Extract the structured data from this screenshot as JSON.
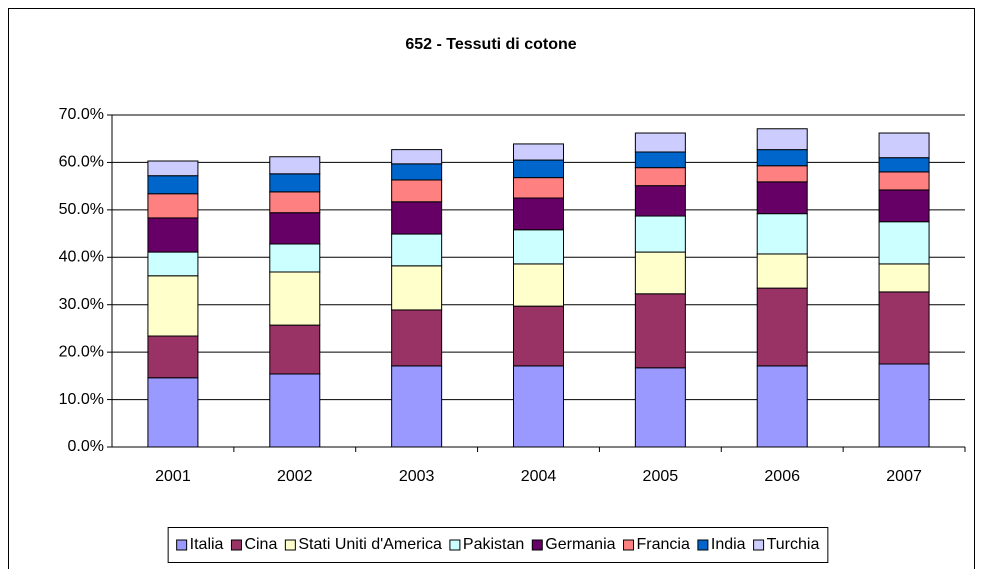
{
  "chart_data": {
    "type": "stacked-bar",
    "title": "652 - Tessuti di cotone",
    "categories": [
      "2001",
      "2002",
      "2003",
      "2004",
      "2005",
      "2006",
      "2007"
    ],
    "series": [
      {
        "name": "Italia",
        "color": "#9999ff",
        "values": [
          14.6,
          15.4,
          17.1,
          17.1,
          16.7,
          17.1,
          17.5
        ]
      },
      {
        "name": "Cina",
        "color": "#993366",
        "values": [
          8.8,
          10.3,
          11.8,
          12.6,
          15.6,
          16.4,
          15.2
        ]
      },
      {
        "name": "Stati Uniti d'America",
        "color": "#ffffcc",
        "values": [
          12.7,
          11.2,
          9.3,
          8.9,
          8.8,
          7.2,
          5.9
        ]
      },
      {
        "name": "Pakistan",
        "color": "#ccffff",
        "values": [
          5.0,
          5.9,
          6.7,
          7.2,
          7.6,
          8.5,
          8.9
        ]
      },
      {
        "name": "Germania",
        "color": "#660066",
        "values": [
          7.2,
          6.6,
          6.8,
          6.7,
          6.4,
          6.7,
          6.7
        ]
      },
      {
        "name": "Francia",
        "color": "#ff8080",
        "values": [
          5.1,
          4.4,
          4.6,
          4.3,
          3.8,
          3.4,
          3.8
        ]
      },
      {
        "name": "India",
        "color": "#0066cc",
        "values": [
          3.8,
          3.8,
          3.4,
          3.7,
          3.3,
          3.4,
          3.0
        ]
      },
      {
        "name": "Turchia",
        "color": "#ccccff",
        "values": [
          3.1,
          3.6,
          3.0,
          3.4,
          4.0,
          4.4,
          5.2
        ]
      }
    ],
    "ylim": [
      0,
      70
    ],
    "yticks": [
      {
        "value": 0,
        "label": "0.0%"
      },
      {
        "value": 10,
        "label": "10.0%"
      },
      {
        "value": 20,
        "label": "20.0%"
      },
      {
        "value": 30,
        "label": "30.0%"
      },
      {
        "value": 40,
        "label": "40.0%"
      },
      {
        "value": 50,
        "label": "50.0%"
      },
      {
        "value": 60,
        "label": "60.0%"
      },
      {
        "value": 70,
        "label": "70.0%"
      }
    ],
    "grid": true,
    "legend": "bottom"
  }
}
